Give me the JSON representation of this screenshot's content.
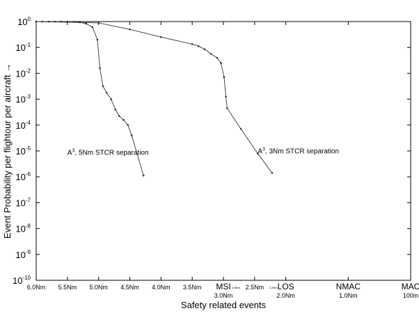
{
  "chart_data": {
    "type": "line",
    "title": "",
    "xlabel": "Safety related events",
    "ylabel": "Event Probability per flightour per aircraft →",
    "yscale": "log",
    "ylim_exp": [
      -10,
      0
    ],
    "y_tick_labels": [
      {
        "base": "10",
        "exp": "0"
      },
      {
        "base": "10",
        "exp": "-1"
      },
      {
        "base": "10",
        "exp": "-2"
      },
      {
        "base": "10",
        "exp": "-3"
      },
      {
        "base": "10",
        "exp": "-4"
      },
      {
        "base": "10",
        "exp": "-5"
      },
      {
        "base": "10",
        "exp": "-6"
      },
      {
        "base": "10",
        "exp": "-7"
      },
      {
        "base": "10",
        "exp": "-8"
      },
      {
        "base": "10",
        "exp": "-9"
      },
      {
        "base": "10",
        "exp": "-10"
      }
    ],
    "x_axis_order": "separation distance decreasing left to right (Nm)",
    "x_ticks": [
      {
        "x": 6.0,
        "label": "6.0Nm",
        "big": ""
      },
      {
        "x": 5.5,
        "label": "5.5Nm",
        "big": ""
      },
      {
        "x": 5.0,
        "label": "5.0Nm",
        "big": ""
      },
      {
        "x": 4.5,
        "label": "4.5Nm",
        "big": ""
      },
      {
        "x": 4.0,
        "label": "4.0Nm",
        "big": ""
      },
      {
        "x": 3.5,
        "label": "3.5Nm",
        "big": ""
      },
      {
        "x": 3.0,
        "label": "3.0Nm",
        "big": "MSI"
      },
      {
        "x": 2.5,
        "label": "2.5Nm",
        "big": ""
      },
      {
        "x": 2.0,
        "label": "2.0Nm",
        "big": "LOS"
      },
      {
        "x": 1.0,
        "label": "1.0Nm",
        "big": "NMAC"
      },
      {
        "x": 0.0,
        "label": "100m",
        "big": "MAC"
      }
    ],
    "minor_x_labels": [
      {
        "x": 2.8,
        "label": "2.8Nm"
      },
      {
        "x": 2.2,
        "label": "2.2Nm"
      }
    ],
    "series": [
      {
        "label_base": "A",
        "label_sup": "3",
        "label_rest": ", 5Nm STCR separation",
        "label_at": {
          "x": 5.5,
          "log_y": -5.15
        },
        "points": [
          {
            "x": 6.0,
            "log_y": 0.0
          },
          {
            "x": 5.9,
            "log_y": 0.0
          },
          {
            "x": 5.8,
            "log_y": 0.0
          },
          {
            "x": 5.7,
            "log_y": 0.0
          },
          {
            "x": 5.6,
            "log_y": 0.0
          },
          {
            "x": 5.5,
            "log_y": 0.0
          },
          {
            "x": 5.4,
            "log_y": -0.01
          },
          {
            "x": 5.3,
            "log_y": -0.03
          },
          {
            "x": 5.2,
            "log_y": -0.08
          },
          {
            "x": 5.1,
            "log_y": -0.21
          },
          {
            "x": 5.02,
            "log_y": -0.7
          },
          {
            "x": 4.98,
            "log_y": -1.8
          },
          {
            "x": 4.93,
            "log_y": -2.5
          },
          {
            "x": 4.87,
            "log_y": -2.75
          },
          {
            "x": 4.8,
            "log_y": -3.0
          },
          {
            "x": 4.73,
            "log_y": -3.4
          },
          {
            "x": 4.67,
            "log_y": -3.65
          },
          {
            "x": 4.6,
            "log_y": -3.8
          },
          {
            "x": 4.53,
            "log_y": -4.0
          },
          {
            "x": 4.47,
            "log_y": -4.4
          },
          {
            "x": 4.28,
            "log_y": -5.95
          }
        ]
      },
      {
        "label_base": "A",
        "label_sup": "3",
        "label_rest": ", 3Nm STCR separation",
        "label_at": {
          "x": 2.45,
          "log_y": -5.1
        },
        "points": [
          {
            "x": 6.0,
            "log_y": 0.0
          },
          {
            "x": 5.0,
            "log_y": -0.05
          },
          {
            "x": 4.5,
            "log_y": -0.3
          },
          {
            "x": 4.0,
            "log_y": -0.6
          },
          {
            "x": 3.5,
            "log_y": -0.87
          },
          {
            "x": 3.4,
            "log_y": -0.95
          },
          {
            "x": 3.3,
            "log_y": -1.07
          },
          {
            "x": 3.2,
            "log_y": -1.25
          },
          {
            "x": 3.1,
            "log_y": -1.4
          },
          {
            "x": 3.04,
            "log_y": -1.6
          },
          {
            "x": 2.99,
            "log_y": -2.15
          },
          {
            "x": 2.96,
            "log_y": -2.9
          },
          {
            "x": 2.94,
            "log_y": -3.35
          },
          {
            "x": 2.72,
            "log_y": -4.15
          },
          {
            "x": 2.45,
            "log_y": -5.1
          },
          {
            "x": 2.22,
            "log_y": -5.85
          }
        ]
      }
    ]
  }
}
